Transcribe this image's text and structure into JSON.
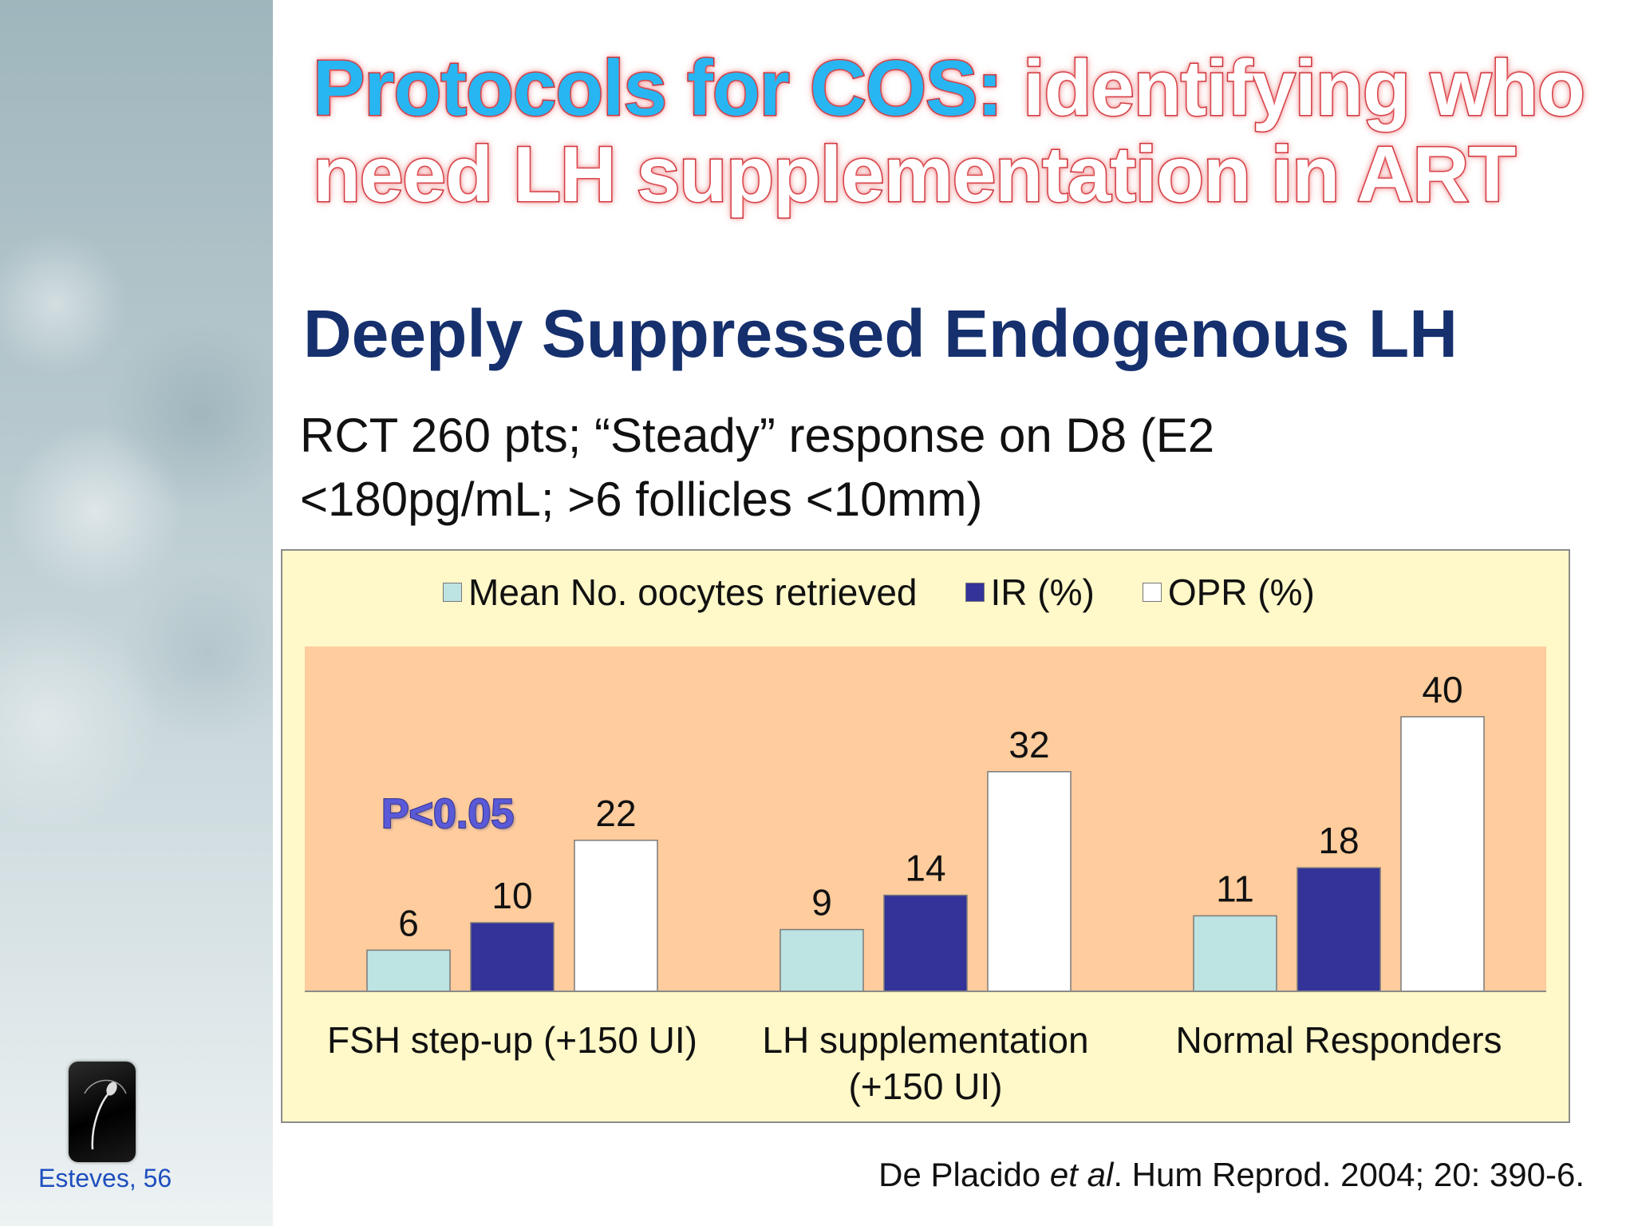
{
  "slide": {
    "title_accent": "Protocols for COS:",
    "title_rest_line1": " identifying who",
    "title_line2": "need LH supplementation in ART",
    "subtitle": "Deeply Suppressed Endogenous LH",
    "description_line1": "RCT 260 pts; “Steady” response on D8 (E2",
    "description_line2": "<180pg/mL; >6 follicles <10mm)",
    "annotation": "P<0.05",
    "footer_left": "Esteves, 56",
    "citation_pre": "De Placido ",
    "citation_italic": "et al",
    "citation_post": ". Hum Reprod. 2004; 20: 390-6."
  },
  "colors": {
    "series_oocytes": "#bde3e3",
    "series_ir": "#333399",
    "series_opr": "#ffffff",
    "plot_background": "#ffcc9d",
    "chart_background": "#fff8c8"
  },
  "chart_data": {
    "type": "bar",
    "categories": [
      "FSH step-up (+150 UI)",
      "LH supplementation (+150 UI)",
      "Normal Responders"
    ],
    "category_labels": [
      [
        "FSH step-up (+150 UI)"
      ],
      [
        "LH supplementation",
        "(+150 UI)"
      ],
      [
        "Normal Responders"
      ]
    ],
    "series": [
      {
        "name": "Mean No. oocytes retrieved",
        "values": [
          6,
          9,
          11
        ]
      },
      {
        "name": "IR (%)",
        "values": [
          10,
          14,
          18
        ]
      },
      {
        "name": "OPR (%)",
        "values": [
          22,
          32,
          40
        ]
      }
    ],
    "ylim": [
      0,
      45
    ],
    "grid": false,
    "legend": "top",
    "data_labels": true,
    "title": "",
    "xlabel": "",
    "ylabel": ""
  }
}
